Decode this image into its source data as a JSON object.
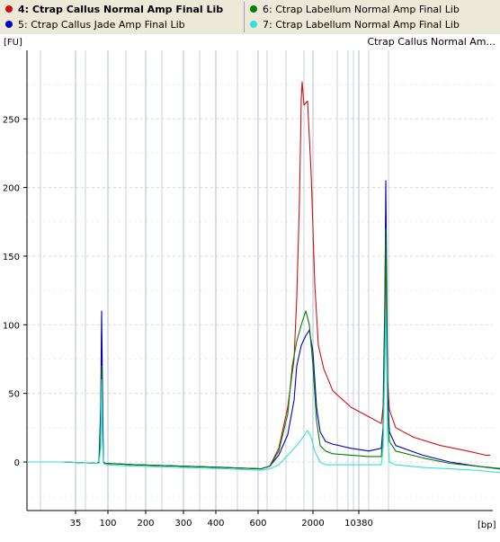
{
  "legend": {
    "items": [
      {
        "label": "4: Ctrap Callus Normal Amp Final Lib",
        "color": "#d01010",
        "active": true
      },
      {
        "label": "5: Ctrap Callus Jade Amp Final Lib",
        "color": "#0000c0",
        "active": false
      },
      {
        "label": "6: Ctrap Labellum Normal Amp Final Lib",
        "color": "#008000",
        "active": false
      },
      {
        "label": "7: Ctrap Labellum Normal Amp Final Lib",
        "color": "#30e0e0",
        "active": false
      }
    ]
  },
  "chart_data": {
    "type": "line",
    "title": "Ctrap Callus Normal Am...",
    "ylabel": "[FU]",
    "xlabel": "[bp]",
    "ylim": [
      -35,
      280
    ],
    "y_ticks": [
      0,
      50,
      100,
      150,
      200,
      250
    ],
    "x_ticks": [
      "35",
      "100",
      "200",
      "300",
      "400",
      "600",
      "2000",
      "10380"
    ],
    "grid": true,
    "series": [
      {
        "name": "4: Ctrap Callus Normal Amp Final Lib",
        "color": "#d01010",
        "points": [
          [
            0,
            0
          ],
          [
            40,
            0
          ],
          [
            78,
            -1
          ],
          [
            80,
            -1
          ],
          [
            82,
            20
          ],
          [
            83,
            95
          ],
          [
            84,
            30
          ],
          [
            85,
            0
          ],
          [
            87,
            -1
          ],
          [
            120,
            -2
          ],
          [
            170,
            -3
          ],
          [
            220,
            -4
          ],
          [
            260,
            -5
          ],
          [
            270,
            -3
          ],
          [
            280,
            10
          ],
          [
            290,
            40
          ],
          [
            297,
            75
          ],
          [
            300,
            120
          ],
          [
            303,
            190
          ],
          [
            305,
            265
          ],
          [
            306,
            277
          ],
          [
            308,
            260
          ],
          [
            312,
            263
          ],
          [
            316,
            210
          ],
          [
            320,
            130
          ],
          [
            324,
            85
          ],
          [
            330,
            68
          ],
          [
            340,
            52
          ],
          [
            360,
            40
          ],
          [
            380,
            33
          ],
          [
            394,
            28
          ],
          [
            396,
            40
          ],
          [
            398,
            120
          ],
          [
            399,
            180
          ],
          [
            400,
            110
          ],
          [
            401,
            60
          ],
          [
            403,
            38
          ],
          [
            410,
            25
          ],
          [
            430,
            18
          ],
          [
            460,
            12
          ],
          [
            490,
            8
          ],
          [
            510,
            5
          ],
          [
            515,
            5
          ]
        ]
      },
      {
        "name": "5: Ctrap Callus Jade Amp Final Lib",
        "color": "#0000c0",
        "points": [
          [
            0,
            0
          ],
          [
            40,
            0
          ],
          [
            78,
            -1
          ],
          [
            80,
            0
          ],
          [
            82,
            40
          ],
          [
            83,
            110
          ],
          [
            84,
            50
          ],
          [
            85,
            0
          ],
          [
            87,
            -1
          ],
          [
            120,
            -2
          ],
          [
            170,
            -3
          ],
          [
            220,
            -4
          ],
          [
            260,
            -5
          ],
          [
            270,
            -3
          ],
          [
            280,
            5
          ],
          [
            290,
            20
          ],
          [
            297,
            45
          ],
          [
            300,
            70
          ],
          [
            305,
            85
          ],
          [
            310,
            92
          ],
          [
            314,
            96
          ],
          [
            318,
            80
          ],
          [
            322,
            40
          ],
          [
            326,
            22
          ],
          [
            332,
            15
          ],
          [
            340,
            13
          ],
          [
            360,
            10
          ],
          [
            380,
            8
          ],
          [
            394,
            10
          ],
          [
            396,
            25
          ],
          [
            398,
            110
          ],
          [
            399,
            205
          ],
          [
            400,
            130
          ],
          [
            401,
            50
          ],
          [
            403,
            22
          ],
          [
            410,
            12
          ],
          [
            440,
            5
          ],
          [
            470,
            0
          ],
          [
            500,
            -3
          ],
          [
            525,
            -5
          ],
          [
            535,
            -7
          ]
        ]
      },
      {
        "name": "6: Ctrap Labellum Normal Amp Final Lib",
        "color": "#008000",
        "points": [
          [
            0,
            0
          ],
          [
            40,
            0
          ],
          [
            78,
            -1
          ],
          [
            80,
            -1
          ],
          [
            82,
            30
          ],
          [
            83,
            70
          ],
          [
            84,
            20
          ],
          [
            85,
            0
          ],
          [
            87,
            -1
          ],
          [
            120,
            -2
          ],
          [
            170,
            -3
          ],
          [
            220,
            -4
          ],
          [
            260,
            -5
          ],
          [
            270,
            -3
          ],
          [
            280,
            8
          ],
          [
            290,
            35
          ],
          [
            295,
            70
          ],
          [
            300,
            88
          ],
          [
            305,
            100
          ],
          [
            310,
            110
          ],
          [
            314,
            100
          ],
          [
            318,
            70
          ],
          [
            322,
            30
          ],
          [
            326,
            12
          ],
          [
            332,
            8
          ],
          [
            340,
            6
          ],
          [
            360,
            5
          ],
          [
            380,
            4
          ],
          [
            394,
            4
          ],
          [
            396,
            20
          ],
          [
            398,
            100
          ],
          [
            399,
            170
          ],
          [
            400,
            100
          ],
          [
            401,
            40
          ],
          [
            403,
            15
          ],
          [
            410,
            8
          ],
          [
            440,
            3
          ],
          [
            470,
            -1
          ],
          [
            500,
            -3
          ],
          [
            530,
            -5
          ]
        ]
      },
      {
        "name": "7: Ctrap Labellum Normal Amp Final Lib",
        "color": "#30e0e0",
        "points": [
          [
            0,
            0
          ],
          [
            40,
            0
          ],
          [
            78,
            -1
          ],
          [
            80,
            -1
          ],
          [
            82,
            10
          ],
          [
            83,
            60
          ],
          [
            84,
            15
          ],
          [
            85,
            -1
          ],
          [
            87,
            -2
          ],
          [
            120,
            -3
          ],
          [
            170,
            -4
          ],
          [
            220,
            -5
          ],
          [
            260,
            -6
          ],
          [
            270,
            -5
          ],
          [
            280,
            -2
          ],
          [
            290,
            5
          ],
          [
            300,
            12
          ],
          [
            308,
            19
          ],
          [
            312,
            23
          ],
          [
            316,
            18
          ],
          [
            320,
            8
          ],
          [
            326,
            0
          ],
          [
            332,
            -2
          ],
          [
            340,
            -2
          ],
          [
            360,
            -2
          ],
          [
            380,
            -2
          ],
          [
            394,
            -2
          ],
          [
            396,
            10
          ],
          [
            398,
            70
          ],
          [
            399,
            110
          ],
          [
            400,
            70
          ],
          [
            401,
            20
          ],
          [
            403,
            0
          ],
          [
            410,
            -2
          ],
          [
            440,
            -4
          ],
          [
            470,
            -5
          ],
          [
            500,
            -6
          ],
          [
            530,
            -8
          ],
          [
            540,
            -8
          ]
        ]
      }
    ]
  }
}
